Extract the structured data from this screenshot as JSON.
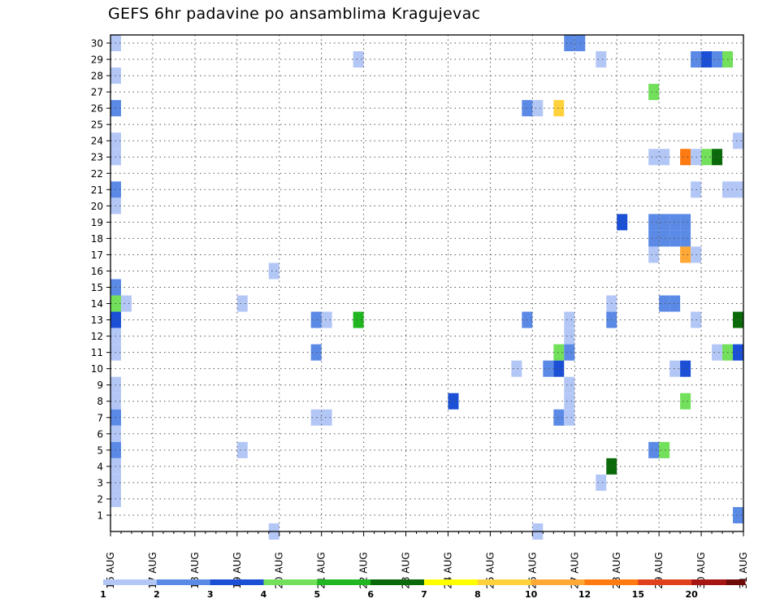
{
  "chart_data": {
    "type": "heatmap",
    "title": "GEFS 6hr padavine po ansamblima Kragujevac",
    "x_tick_labels": [
      "16 AUG",
      "17 AUG",
      "18 AUG",
      "19 AUG",
      "20 AUG",
      "21 AUG",
      "22 AUG",
      "23 AUG",
      "24 AUG",
      "25 AUG",
      "26 AUG",
      "27 AUG",
      "28 AUG",
      "29 AUG",
      "30 AUG",
      "31 AUG"
    ],
    "y_tick_labels": [
      "1",
      "2",
      "3",
      "4",
      "5",
      "6",
      "7",
      "8",
      "9",
      "10",
      "11",
      "12",
      "13",
      "14",
      "15",
      "16",
      "17",
      "18",
      "19",
      "20",
      "21",
      "22",
      "23",
      "24",
      "25",
      "26",
      "27",
      "28",
      "29",
      "30"
    ],
    "x_range": [
      "16 AUG 00Z",
      "31 AUG 00Z"
    ],
    "y_range": [
      0,
      30
    ],
    "grid": true,
    "colorbar": {
      "placement": "bottom",
      "labels": [
        "1",
        "2",
        "3",
        "4",
        "5",
        "6",
        "7",
        "8",
        "10",
        "12",
        "15",
        "20"
      ],
      "colors": [
        "#b3c7f7",
        "#5a8ae6",
        "#1a4fd6",
        "#72e05a",
        "#1fb61f",
        "#0a6a0a",
        "#ffff00",
        "#ffd23c",
        "#ffa834",
        "#ff7a10",
        "#e1401c",
        "#a61414",
        "#6e0a0a"
      ]
    },
    "cells_legend": "Each cell: [forecast step index (6 h steps from 16 AUG 00Z), ensemble member, colour class index into colorbar.colors]",
    "cells": [
      [
        0,
        30,
        0
      ],
      [
        0,
        28,
        0
      ],
      [
        0,
        26,
        1
      ],
      [
        0,
        24,
        0
      ],
      [
        0,
        23,
        0
      ],
      [
        0,
        21,
        1
      ],
      [
        0,
        20,
        0
      ],
      [
        0,
        15,
        1
      ],
      [
        0,
        14,
        3
      ],
      [
        0,
        13,
        2
      ],
      [
        0,
        12,
        0
      ],
      [
        0,
        11,
        0
      ],
      [
        0,
        9,
        0
      ],
      [
        0,
        8,
        0
      ],
      [
        0,
        7,
        1
      ],
      [
        0,
        6,
        0
      ],
      [
        0,
        5,
        1
      ],
      [
        0,
        4,
        0
      ],
      [
        0,
        3,
        0
      ],
      [
        0,
        2,
        0
      ],
      [
        1,
        14,
        0
      ],
      [
        12,
        14,
        0
      ],
      [
        12,
        5,
        0
      ],
      [
        15,
        16,
        0
      ],
      [
        15,
        0,
        0
      ],
      [
        19,
        13,
        1
      ],
      [
        19,
        11,
        1
      ],
      [
        19,
        7,
        0
      ],
      [
        20,
        13,
        0
      ],
      [
        20,
        7,
        0
      ],
      [
        23,
        29,
        0
      ],
      [
        23,
        13,
        4
      ],
      [
        32,
        8,
        2
      ],
      [
        38,
        10,
        0
      ],
      [
        39,
        26,
        1
      ],
      [
        39,
        13,
        1
      ],
      [
        40,
        26,
        0
      ],
      [
        40,
        0,
        0
      ],
      [
        41,
        10,
        1
      ],
      [
        42,
        26,
        7
      ],
      [
        42,
        11,
        3
      ],
      [
        42,
        10,
        2
      ],
      [
        42,
        7,
        1
      ],
      [
        43,
        13,
        0
      ],
      [
        43,
        12,
        0
      ],
      [
        43,
        11,
        1
      ],
      [
        43,
        9,
        0
      ],
      [
        43,
        8,
        0
      ],
      [
        43,
        7,
        0
      ],
      [
        43,
        30,
        1
      ],
      [
        44,
        30,
        1
      ],
      [
        46,
        29,
        0
      ],
      [
        46,
        3,
        0
      ],
      [
        47,
        14,
        0
      ],
      [
        47,
        13,
        1
      ],
      [
        47,
        4,
        5
      ],
      [
        48,
        19,
        2
      ],
      [
        51,
        27,
        3
      ],
      [
        51,
        23,
        0
      ],
      [
        51,
        19,
        1
      ],
      [
        51,
        18,
        1
      ],
      [
        51,
        17,
        0
      ],
      [
        51,
        5,
        1
      ],
      [
        52,
        23,
        0
      ],
      [
        52,
        19,
        1
      ],
      [
        52,
        18,
        1
      ],
      [
        52,
        14,
        1
      ],
      [
        52,
        5,
        3
      ],
      [
        53,
        19,
        1
      ],
      [
        53,
        18,
        1
      ],
      [
        53,
        14,
        1
      ],
      [
        53,
        10,
        0
      ],
      [
        54,
        23,
        9
      ],
      [
        54,
        19,
        1
      ],
      [
        54,
        18,
        1
      ],
      [
        54,
        17,
        8
      ],
      [
        54,
        10,
        2
      ],
      [
        54,
        8,
        3
      ],
      [
        55,
        23,
        0
      ],
      [
        55,
        21,
        0
      ],
      [
        55,
        17,
        0
      ],
      [
        55,
        13,
        0
      ],
      [
        55,
        29,
        1
      ],
      [
        56,
        29,
        2
      ],
      [
        56,
        23,
        3
      ],
      [
        57,
        29,
        1
      ],
      [
        57,
        23,
        5
      ],
      [
        57,
        11,
        0
      ],
      [
        58,
        29,
        3
      ],
      [
        58,
        11,
        3
      ],
      [
        58,
        21,
        0
      ],
      [
        59,
        24,
        0
      ],
      [
        59,
        21,
        0
      ],
      [
        59,
        13,
        5
      ],
      [
        59,
        11,
        2
      ],
      [
        59,
        1,
        1
      ]
    ]
  }
}
